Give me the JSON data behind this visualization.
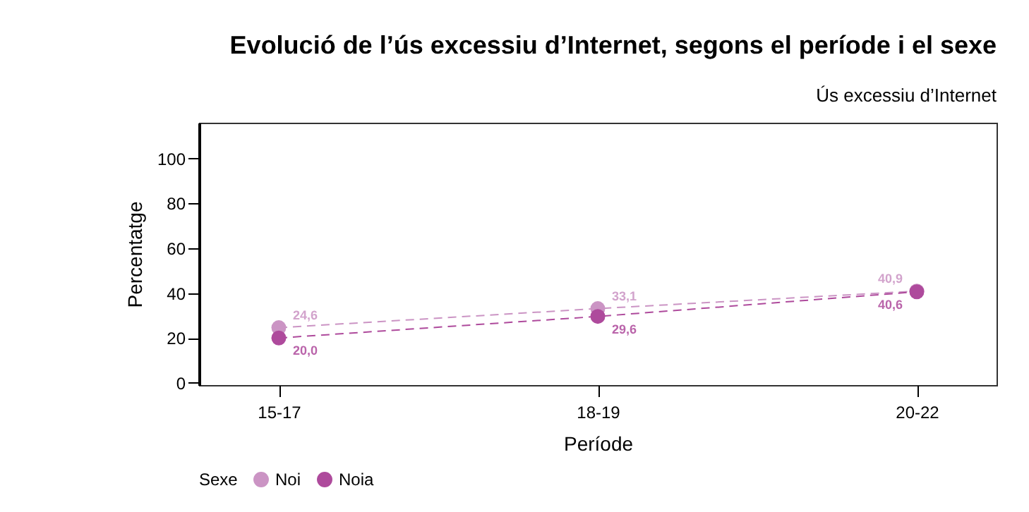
{
  "chart_data": {
    "type": "line",
    "title": "Evolució de l’ús excessiu d’Internet, segons el període i el sexe",
    "subtitle": "Ús excessiu d’Internet",
    "xlabel": "Període",
    "ylabel": "Percentatge",
    "legend_title": "Sexe",
    "categories": [
      "15-17",
      "18-19",
      "20-22"
    ],
    "series": [
      {
        "name": "Noi",
        "color": "#cb94c4",
        "values": [
          24.6,
          33.1,
          40.9
        ],
        "value_labels": [
          "24,6",
          "33,1",
          "40,9"
        ]
      },
      {
        "name": "Noia",
        "color": "#ae4a9c",
        "values": [
          20.0,
          29.6,
          40.6
        ],
        "value_labels": [
          "20,0",
          "29,6",
          "40,6"
        ]
      }
    ],
    "ylim": [
      -1,
      116
    ],
    "yticks": [
      0,
      20,
      40,
      60,
      80,
      100
    ],
    "grid": false,
    "legend": "bottom left",
    "marker": "circle",
    "line_style": "dashed"
  }
}
